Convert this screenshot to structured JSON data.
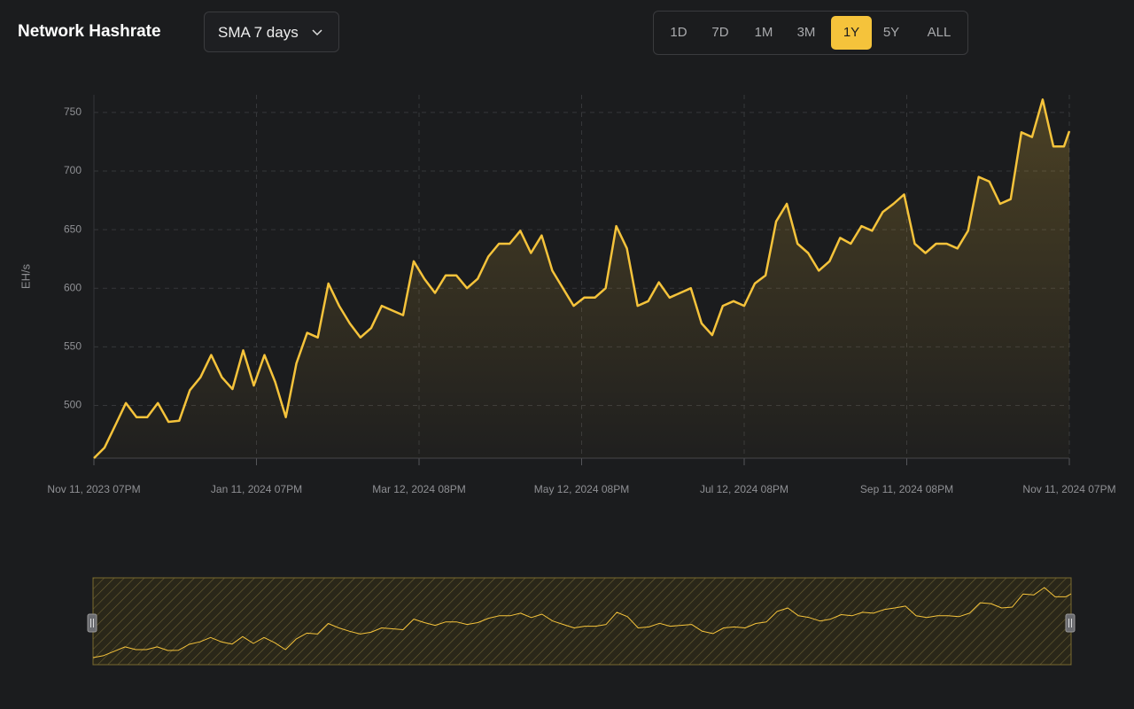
{
  "controls": {
    "average": "SMA 7 days",
    "ranges": [
      "1D",
      "7D",
      "1M",
      "3M",
      "1Y",
      "5Y",
      "ALL"
    ],
    "active_range": "1Y"
  },
  "chart_data": {
    "type": "line",
    "title": "Network Hashrate",
    "y_label": "EH/s",
    "x": [
      "2023-11-11",
      "2023-11-15",
      "2023-11-19",
      "2023-11-23",
      "2023-11-27",
      "2023-12-01",
      "2023-12-05",
      "2023-12-09",
      "2023-12-13",
      "2023-12-17",
      "2023-12-21",
      "2023-12-25",
      "2023-12-29",
      "2024-01-02",
      "2024-01-06",
      "2024-01-10",
      "2024-01-14",
      "2024-01-18",
      "2024-01-22",
      "2024-01-26",
      "2024-01-30",
      "2024-02-03",
      "2024-02-07",
      "2024-02-11",
      "2024-02-15",
      "2024-02-19",
      "2024-02-23",
      "2024-02-27",
      "2024-03-02",
      "2024-03-06",
      "2024-03-10",
      "2024-03-14",
      "2024-03-18",
      "2024-03-22",
      "2024-03-26",
      "2024-03-30",
      "2024-04-03",
      "2024-04-07",
      "2024-04-11",
      "2024-04-15",
      "2024-04-19",
      "2024-04-23",
      "2024-04-27",
      "2024-05-01",
      "2024-05-05",
      "2024-05-09",
      "2024-05-13",
      "2024-05-17",
      "2024-05-21",
      "2024-05-25",
      "2024-05-29",
      "2024-06-02",
      "2024-06-06",
      "2024-06-10",
      "2024-06-14",
      "2024-06-18",
      "2024-06-22",
      "2024-06-26",
      "2024-06-30",
      "2024-07-04",
      "2024-07-08",
      "2024-07-12",
      "2024-07-16",
      "2024-07-20",
      "2024-07-24",
      "2024-07-28",
      "2024-08-01",
      "2024-08-05",
      "2024-08-09",
      "2024-08-13",
      "2024-08-17",
      "2024-08-21",
      "2024-08-25",
      "2024-08-29",
      "2024-09-02",
      "2024-09-06",
      "2024-09-10",
      "2024-09-14",
      "2024-09-18",
      "2024-09-22",
      "2024-09-26",
      "2024-09-30",
      "2024-10-04",
      "2024-10-08",
      "2024-10-12",
      "2024-10-16",
      "2024-10-20",
      "2024-10-24",
      "2024-10-28",
      "2024-11-01",
      "2024-11-05",
      "2024-11-09",
      "2024-11-11"
    ],
    "series": [
      {
        "name": "Network Hashrate",
        "color": "#f5c33b",
        "values": [
          455,
          464,
          483,
          502,
          490,
          490,
          502,
          486,
          487,
          513,
          524,
          543,
          524,
          514,
          547,
          517,
          543,
          520,
          490,
          536,
          562,
          558,
          604,
          585,
          570,
          558,
          566,
          585,
          581,
          577,
          623,
          608,
          596,
          611,
          611,
          600,
          608,
          627,
          638,
          638,
          649,
          630,
          645,
          615,
          600,
          585,
          592,
          592,
          600,
          653,
          634,
          585,
          589,
          605,
          592,
          596,
          600,
          570,
          560,
          585,
          589,
          585,
          604,
          611,
          657,
          672,
          638,
          630,
          615,
          623,
          643,
          638,
          653,
          649,
          665,
          672,
          680,
          638,
          630,
          638,
          638,
          634,
          649,
          695,
          691,
          672,
          676,
          733,
          729,
          761,
          721,
          721,
          734
        ]
      }
    ],
    "xticks": [
      {
        "value": "2023-11-11",
        "label": "Nov 11, 2023 07PM"
      },
      {
        "value": "2024-01-11",
        "label": "Jan 11, 2024 07PM"
      },
      {
        "value": "2024-03-12",
        "label": "Mar 12, 2024 08PM"
      },
      {
        "value": "2024-05-12",
        "label": "May 12, 2024 08PM"
      },
      {
        "value": "2024-07-12",
        "label": "Jul 12, 2024 08PM"
      },
      {
        "value": "2024-09-11",
        "label": "Sep 11, 2024 08PM"
      },
      {
        "value": "2024-11-11",
        "label": "Nov 11, 2024 07PM"
      }
    ],
    "xlim": [
      "2023-11-11",
      "2024-11-11"
    ],
    "ylim": [
      455,
      765
    ],
    "yticks": [
      500,
      550,
      600,
      650,
      700,
      750
    ],
    "grid": true
  }
}
